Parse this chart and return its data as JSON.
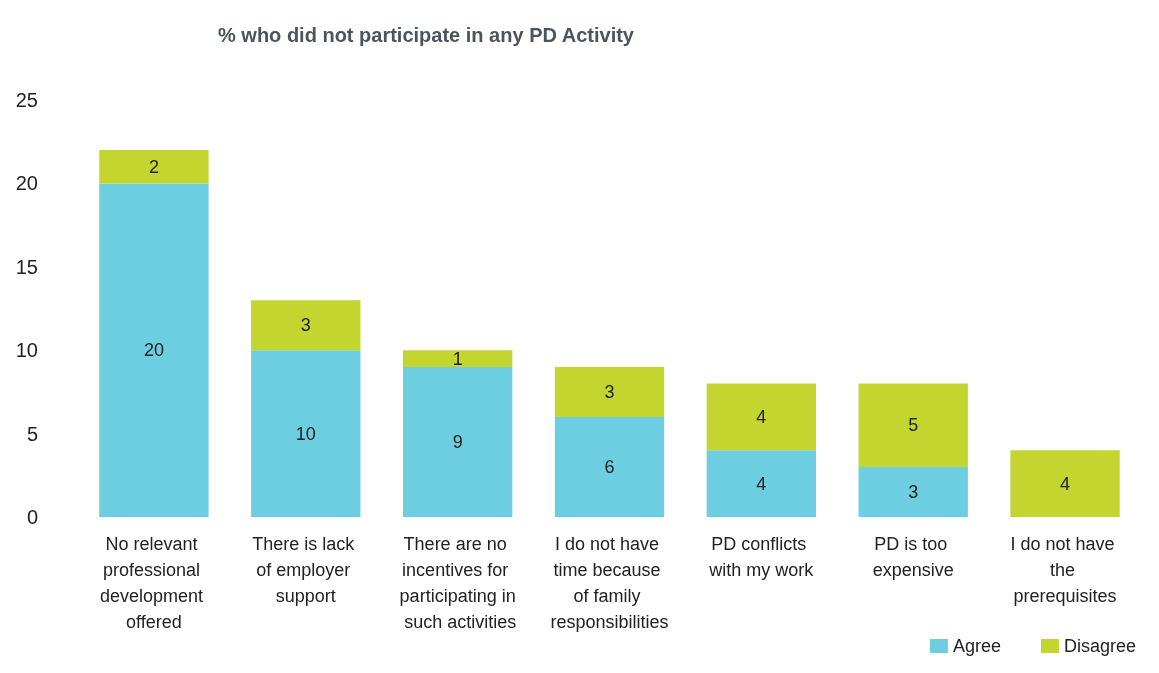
{
  "chart_data": {
    "type": "bar",
    "title": "% who did not participate in any PD Activity",
    "stacked": true,
    "data_labels": true,
    "grid": false,
    "legend": "bottom right",
    "categories": [
      "No relevant professional development offered",
      "There is lack of employer support",
      "There are no incentives for participating in such activities",
      "I do not have time because of family responsibilities",
      "PD conflicts with my work",
      "PD is too expensive",
      "I do not have the prerequisites"
    ],
    "ylim": [
      0,
      25
    ],
    "yticks": [
      0,
      5,
      10,
      15,
      20,
      25
    ],
    "series": [
      {
        "name": "Agree",
        "color": "#6dcde1",
        "values": [
          20,
          10,
          9,
          6,
          4,
          3,
          null
        ]
      },
      {
        "name": "Disagree",
        "color": "#c3d52e",
        "values": [
          2,
          3,
          1,
          3,
          4,
          5,
          4
        ]
      }
    ]
  }
}
